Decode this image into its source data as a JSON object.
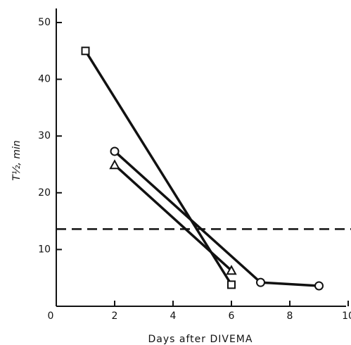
{
  "chart_data": {
    "type": "line",
    "x_label": "Days after DIVEMA",
    "y_label": "T½,   min",
    "xlim": [
      0,
      10
    ],
    "xticks": [
      0,
      2,
      4,
      6,
      8,
      10
    ],
    "ylim": [
      0,
      50
    ],
    "yticks": [
      10,
      20,
      30,
      40,
      50
    ],
    "hline": 13.6,
    "series": [
      {
        "marker": "square",
        "color": "#111111",
        "x": [
          1,
          6
        ],
        "values": [
          45,
          3.8
        ]
      },
      {
        "marker": "circle",
        "color": "#111111",
        "x": [
          2,
          7,
          9
        ],
        "values": [
          27.3,
          4.2,
          3.6
        ]
      },
      {
        "marker": "triangle",
        "color": "#111111",
        "x": [
          2,
          6
        ],
        "values": [
          24.9,
          6.3
        ]
      }
    ]
  }
}
